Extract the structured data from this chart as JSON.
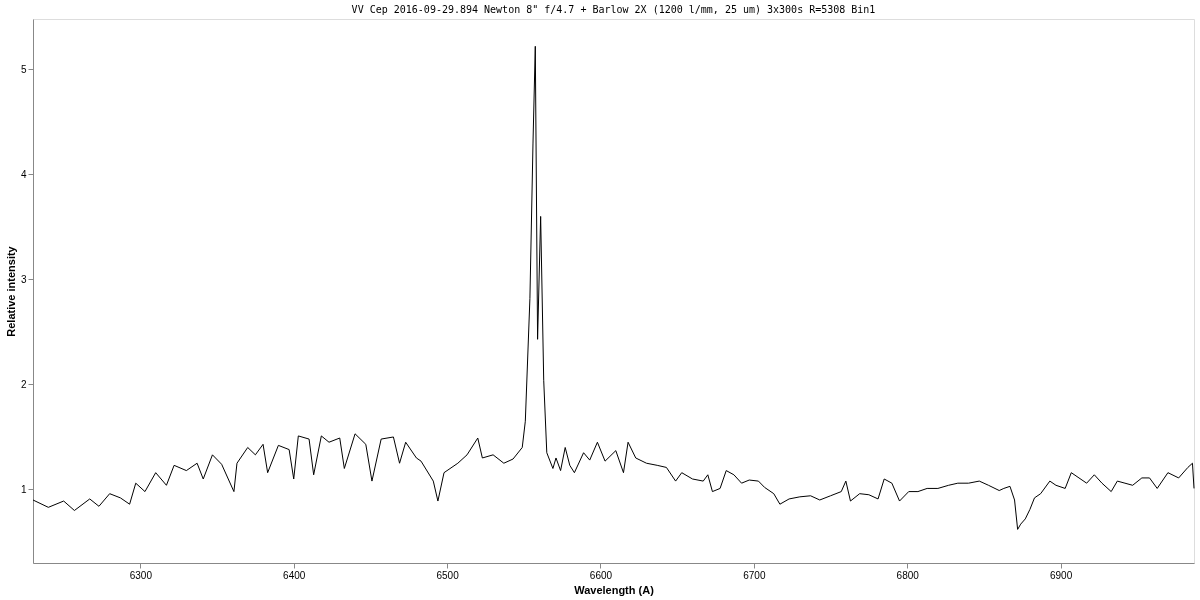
{
  "chart_data": {
    "type": "line",
    "title": "VV Cep  2016-09-29.894   Newton 8\" f/4.7 +  Barlow 2X   (1200 l/mm, 25 um)   3x300s   R=5308  Bin1",
    "xlabel": "Wavelength (A)",
    "ylabel": "Relative intensity",
    "x": [
      6230,
      6240,
      6250,
      6257,
      6267,
      6273,
      6280,
      6287,
      6293,
      6297,
      6303,
      6310,
      6317,
      6322,
      6330,
      6337,
      6341,
      6347,
      6353,
      6361,
      6363,
      6370,
      6375,
      6380,
      6383,
      6390,
      6397,
      6400,
      6403,
      6410,
      6413,
      6418,
      6423,
      6430,
      6433,
      6440,
      6447,
      6451,
      6457,
      6465,
      6469,
      6473,
      6480,
      6483,
      6491,
      6494,
      6498,
      6507,
      6513,
      6520,
      6523,
      6530,
      6537,
      6543,
      6549,
      6551,
      6554,
      6556,
      6557.5,
      6559,
      6561,
      6563,
      6565,
      6569,
      6571,
      6574,
      6577,
      6580,
      6583,
      6589,
      6593,
      6598,
      6603,
      6610,
      6615,
      6618,
      6623,
      6630,
      6637,
      6643,
      6649,
      6653,
      6660,
      6667,
      6670,
      6673,
      6678,
      6682,
      6687,
      6692,
      6697,
      6703,
      6707,
      6713,
      6717,
      6723,
      6730,
      6737,
      6743,
      6750,
      6757,
      6760,
      6763,
      6769,
      6775,
      6781,
      6785,
      6790,
      6795,
      6801,
      6807,
      6813,
      6820,
      6827,
      6833,
      6840,
      6847,
      6853,
      6860,
      6863,
      6867,
      6870,
      6872,
      6874,
      6877,
      6880,
      6883,
      6887,
      6893,
      6897,
      6903,
      6907,
      6912,
      6917,
      6922,
      6927,
      6933,
      6937,
      6942,
      6947,
      6953,
      6958,
      6963,
      6970,
      6977,
      6983,
      6986,
      6987
    ],
    "series": [
      {
        "color": "#000000",
        "values": [
          0.9,
          0.83,
          0.89,
          0.8,
          0.91,
          0.84,
          0.96,
          0.92,
          0.86,
          1.06,
          0.98,
          1.16,
          1.04,
          1.23,
          1.18,
          1.25,
          1.1,
          1.33,
          1.24,
          0.98,
          1.25,
          1.4,
          1.33,
          1.43,
          1.16,
          1.42,
          1.38,
          1.1,
          1.51,
          1.48,
          1.14,
          1.51,
          1.45,
          1.49,
          1.2,
          1.53,
          1.43,
          1.08,
          1.48,
          1.5,
          1.25,
          1.45,
          1.3,
          1.27,
          1.08,
          0.89,
          1.16,
          1.25,
          1.33,
          1.49,
          1.3,
          1.33,
          1.25,
          1.29,
          1.4,
          1.65,
          2.82,
          4.29,
          5.22,
          2.43,
          3.6,
          2.04,
          1.35,
          1.2,
          1.3,
          1.18,
          1.4,
          1.23,
          1.16,
          1.35,
          1.28,
          1.45,
          1.27,
          1.37,
          1.16,
          1.45,
          1.3,
          1.25,
          1.23,
          1.21,
          1.08,
          1.16,
          1.1,
          1.08,
          1.14,
          0.98,
          1.01,
          1.18,
          1.14,
          1.06,
          1.09,
          1.08,
          1.02,
          0.96,
          0.86,
          0.91,
          0.93,
          0.94,
          0.9,
          0.94,
          0.98,
          1.08,
          0.89,
          0.96,
          0.95,
          0.91,
          1.1,
          1.06,
          0.89,
          0.98,
          0.98,
          1.01,
          1.01,
          1.04,
          1.06,
          1.06,
          1.08,
          1.04,
          0.99,
          1.01,
          1.03,
          0.9,
          0.62,
          0.67,
          0.72,
          0.81,
          0.92,
          0.96,
          1.08,
          1.04,
          1.01,
          1.16,
          1.11,
          1.06,
          1.14,
          1.06,
          0.98,
          1.08,
          1.06,
          1.04,
          1.11,
          1.11,
          1.01,
          1.16,
          1.11,
          1.21,
          1.25,
          1.01
        ]
      }
    ],
    "xlim": [
      6230,
      6987
    ],
    "ylim": [
      0.3,
      5.48
    ],
    "xticks": [
      6300,
      6400,
      6500,
      6600,
      6700,
      6800,
      6900
    ],
    "yticks": [
      1,
      2,
      3,
      4,
      5
    ],
    "grid": false,
    "marker": "none",
    "line_style": "solid"
  }
}
